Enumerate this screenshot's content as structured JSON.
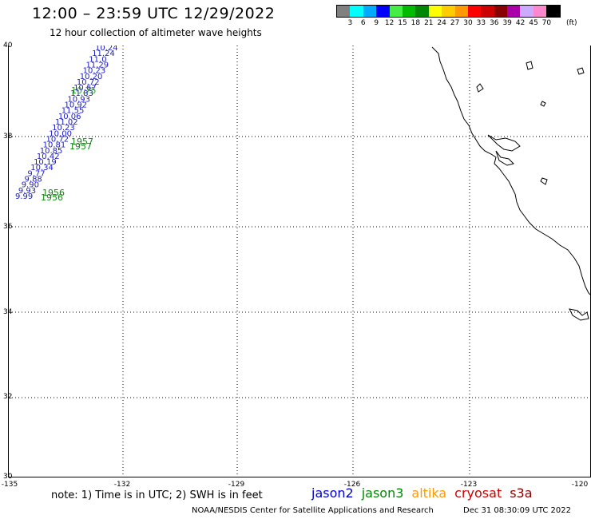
{
  "header": {
    "title": "12:00 – 23:59 UTC 12/29/2022",
    "subtitle": "12 hour collection of altimeter wave heights"
  },
  "colorbar": {
    "colors": [
      "#808080",
      "#00ffff",
      "#00aaff",
      "#0000ff",
      "#44ee44",
      "#00bb00",
      "#008800",
      "#ffff00",
      "#ffcc00",
      "#ff9900",
      "#ff0000",
      "#cc0000",
      "#880000",
      "#aa00aa",
      "#ccaaff",
      "#ff88cc",
      "#000000"
    ],
    "labels": [
      "3",
      "6",
      "9",
      "12",
      "15",
      "18",
      "21",
      "24",
      "27",
      "30",
      "33",
      "36",
      "39",
      "42",
      "45",
      "70"
    ],
    "unit": "(ft)"
  },
  "map": {
    "lat_labels": [
      "40",
      "38",
      "36",
      "34",
      "32",
      "30"
    ],
    "lon_labels": [
      "-135",
      "-132",
      "-129",
      "-126",
      "-123",
      "-120"
    ]
  },
  "track": {
    "blue_labels": [
      "10.24",
      "11.24",
      "11.0",
      "11.29",
      "10.23",
      "10.20",
      "10.72",
      "10.67",
      "11.83",
      "10.93",
      "10.92",
      "11.55",
      "10.06",
      "11.02",
      "10.23",
      "10.00",
      "10.72",
      "10.81",
      "10.85",
      "10.42",
      "10.19",
      "10.34",
      "9.77",
      "9.88",
      "9.90",
      "9.93",
      "9.99"
    ],
    "green_labels": [
      "10.75",
      "1957",
      "1957",
      "1956",
      "1956"
    ]
  },
  "footer": {
    "note": "note: 1) Time is in UTC; 2) SWH is in feet",
    "satellites": [
      {
        "name": "jason2",
        "color": "#0000cc"
      },
      {
        "name": "jason3",
        "color": "#008800"
      },
      {
        "name": "altika",
        "color": "#ff9900"
      },
      {
        "name": "cryosat",
        "color": "#cc0000"
      },
      {
        "name": "s3a",
        "color": "#880000"
      }
    ],
    "credit": "NOAA/NESDIS Center for Satellite Applications and Research",
    "date": "Dec 31 08:30:09 UTC 2022"
  }
}
